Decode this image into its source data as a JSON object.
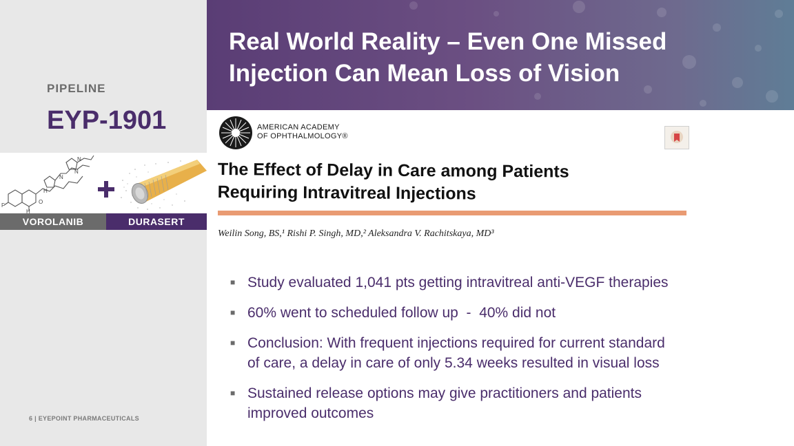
{
  "sidebar": {
    "section_label": "PIPELINE",
    "product_name": "EYP-1901",
    "image_captions": {
      "left": "VOROLANIB",
      "right": "DURASERT"
    },
    "footer": "6 | EYEPOINT PHARMACEUTICALS"
  },
  "header": {
    "title": "Real World Reality – Even One Missed Injection Can Mean Loss of Vision"
  },
  "article": {
    "publisher_line1": "AMERICAN ACADEMY",
    "publisher_line2": "OF OPHTHALMOLOGY®",
    "title_line1": "The Effect of Delay in Care among Patients",
    "title_line2": "Requiring Intravitreal Injections",
    "authors": "Weilin Song, BS,¹ Rishi P. Singh, MD,² Aleksandra V. Rachitskaya, MD³"
  },
  "bullets": [
    {
      "line1": "Study evaluated 1,041 pts getting intravitreal anti-VEGF therapies"
    },
    {
      "line1": "60% went to scheduled follow up  -  40% did not"
    },
    {
      "line1": "Conclusion: With frequent injections required for current standard",
      "line2": "of care, a delay in care of only 5.34 weeks resulted in visual loss"
    },
    {
      "line1": "Sustained release options may give practitioners and patients",
      "line2": "improved outcomes"
    }
  ],
  "colors": {
    "brand_purple": "#4a2d6b",
    "gray_text": "#6b6b6b",
    "accent_orange": "#e58a5a",
    "left_panel_bg": "#e8e8e8"
  }
}
